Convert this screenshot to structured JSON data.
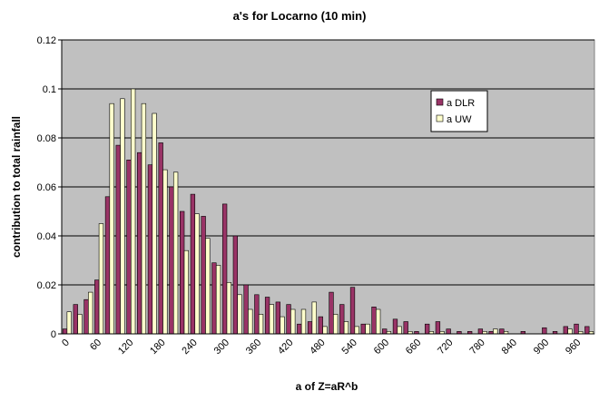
{
  "chart_data": {
    "type": "bar",
    "title": "a's for Locarno (10 min)",
    "xlabel": "a of Z=aR^b",
    "ylabel": "contribution to total rainfall",
    "categories": [
      "0",
      null,
      null,
      "60",
      null,
      null,
      "120",
      null,
      null,
      "180",
      null,
      null,
      "240",
      null,
      null,
      "300",
      null,
      null,
      "360",
      null,
      null,
      "420",
      null,
      null,
      "480",
      null,
      null,
      "540",
      null,
      null,
      "600",
      null,
      null,
      "660",
      null,
      null,
      "720",
      null,
      null,
      "780",
      null,
      null,
      "840",
      null,
      null,
      "900",
      null,
      null,
      "960",
      null
    ],
    "series": [
      {
        "name": "a DLR",
        "color": "#993366",
        "values": [
          0.002,
          0.012,
          0.014,
          0.022,
          0.056,
          0.077,
          0.071,
          0.074,
          0.069,
          0.078,
          0.06,
          0.05,
          0.057,
          0.048,
          0.029,
          0.053,
          0.04,
          0.02,
          0.016,
          0.015,
          0.013,
          0.012,
          0.004,
          0.005,
          0.007,
          0.017,
          0.012,
          0.019,
          0.004,
          0.011,
          0.002,
          0.006,
          0.005,
          0.001,
          0.004,
          0.005,
          0.002,
          0.001,
          0.001,
          0.002,
          0.001,
          0.002,
          0,
          0.001,
          0,
          0.0025,
          0.001,
          0.003,
          0.004,
          0.003
        ]
      },
      {
        "name": "a UW",
        "color": "#ffffcc",
        "values": [
          0.009,
          0.008,
          0.017,
          0.045,
          0.094,
          0.096,
          0.1,
          0.094,
          0.09,
          0.067,
          0.066,
          0.034,
          0.049,
          0.039,
          0.028,
          0.021,
          0.016,
          0.01,
          0.008,
          0.012,
          0.007,
          0.01,
          0.01,
          0.013,
          0.003,
          0.008,
          0.005,
          0.003,
          0.004,
          0.01,
          0.001,
          0.003,
          0.001,
          0,
          0.001,
          0.001,
          0,
          0,
          0,
          0.001,
          0.002,
          0.001,
          0,
          0,
          0,
          0,
          0,
          0.002,
          0.001,
          0.001
        ]
      }
    ],
    "ylim": [
      0,
      0.12
    ],
    "yticks": [
      0,
      0.02,
      0.04,
      0.06,
      0.08,
      0.1,
      0.12
    ],
    "grid": true,
    "plot_background": "#c0c0c0",
    "legend": "upper right"
  }
}
